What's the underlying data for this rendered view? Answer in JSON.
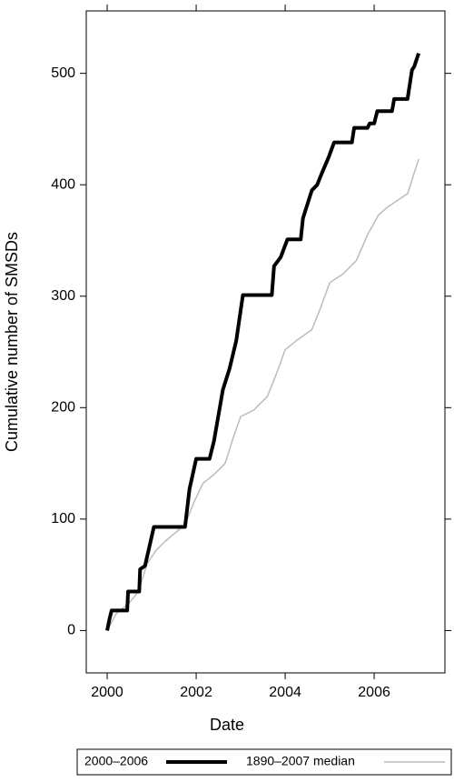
{
  "chart_data": {
    "type": "line",
    "xlabel": "Date",
    "ylabel": "Cumulative number of SMSDs",
    "xlim": [
      1999.53,
      2007.59
    ],
    "ylim": [
      -38,
      556
    ],
    "xticks": [
      2000,
      2002,
      2004,
      2006
    ],
    "yticks": [
      0,
      100,
      200,
      300,
      400,
      500
    ],
    "series": [
      {
        "name": "2000–2006",
        "color": "#000000",
        "width": 4,
        "x": [
          2000,
          2000.05,
          2000.1,
          2000.45,
          2000.47,
          2000.72,
          2000.74,
          2000.85,
          2001.05,
          2001.75,
          2001.85,
          2002.0,
          2002.3,
          2002.4,
          2002.6,
          2002.75,
          2002.9,
          2003.05,
          2003.7,
          2003.75,
          2003.9,
          2004.05,
          2004.35,
          2004.4,
          2004.6,
          2004.72,
          2004.82,
          2004.98,
          2005.1,
          2005.5,
          2005.55,
          2005.85,
          2005.9,
          2006.0,
          2006.07,
          2006.4,
          2006.45,
          2006.75,
          2006.85,
          2006.9,
          2007.0
        ],
        "values": [
          0,
          10,
          18,
          18,
          35,
          35,
          55,
          58,
          93,
          93,
          127,
          154,
          154,
          170,
          216,
          235,
          260,
          301,
          301,
          327,
          335,
          351,
          351,
          370,
          395,
          400,
          410,
          425,
          438,
          438,
          451,
          451,
          455,
          455,
          466,
          466,
          477,
          477,
          503,
          506,
          518
        ]
      },
      {
        "name": "1890–2007 median",
        "color": "#bbbbbb",
        "width": 1.5,
        "x": [
          2000,
          2000.2,
          2000.5,
          2000.7,
          2000.9,
          2001.1,
          2001.3,
          2001.6,
          2001.75,
          2001.95,
          2002.15,
          2002.4,
          2002.65,
          2002.85,
          2003.0,
          2003.3,
          2003.6,
          2003.8,
          2004.0,
          2004.25,
          2004.6,
          2004.8,
          2005.0,
          2005.3,
          2005.6,
          2005.85,
          2006.1,
          2006.3,
          2006.75,
          2007.0
        ],
        "values": [
          0,
          15,
          25,
          35,
          60,
          72,
          80,
          90,
          95,
          115,
          132,
          140,
          150,
          175,
          192,
          198,
          210,
          230,
          252,
          260,
          270,
          290,
          312,
          320,
          332,
          355,
          373,
          380,
          392,
          423
        ]
      }
    ]
  }
}
